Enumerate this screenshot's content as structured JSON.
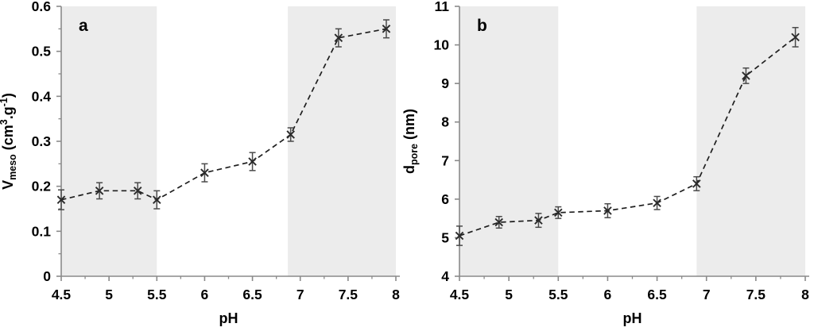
{
  "figure": {
    "description": "Two-panel scatter figure of mesopore volume and pore diameter versus synthesis pH",
    "colors": {
      "background": "#ffffff",
      "shade_band": "#ececec",
      "axis": "#8a8a8a",
      "trend_line": "#1f1f1f",
      "marker": "#2b2b2b",
      "error_bar": "#4a4a4a",
      "label": "#000000"
    }
  },
  "chart_data": [
    {
      "panel_letter": "a",
      "type": "scatter",
      "marker": "x",
      "line_style": "dashed",
      "xlabel": "pH",
      "ylabel": "Vmeso (cm3.g-1)",
      "ylabel_parts": [
        {
          "t": "V"
        },
        {
          "t": "meso",
          "style": "sub"
        },
        {
          "t": " (cm"
        },
        {
          "t": "3",
          "style": "sup"
        },
        {
          "t": ".g"
        },
        {
          "t": "-1",
          "style": "sup"
        },
        {
          "t": ")"
        }
      ],
      "xlim": [
        4.5,
        8
      ],
      "ylim": [
        0,
        0.6
      ],
      "xticks": {
        "values": [
          4.5,
          5,
          5.5,
          6,
          6.5,
          7,
          7.5,
          8
        ],
        "labels": [
          "4.5",
          "5",
          "5.5",
          "6",
          "6.5",
          "7",
          "7.5",
          "8"
        ]
      },
      "yticks": {
        "values": [
          0,
          0.1,
          0.2,
          0.3,
          0.4,
          0.5,
          0.6
        ],
        "labels": [
          "0",
          "0.1",
          "0.2",
          "0.3",
          "0.4",
          "0.5",
          "0.6"
        ]
      },
      "x_minor_step": 0.25,
      "y_minor_step": 0.05,
      "grid": false,
      "shaded_regions": [
        [
          4.5,
          5.5
        ],
        [
          6.87,
          8
        ]
      ],
      "x": [
        4.5,
        4.9,
        5.3,
        5.5,
        6.0,
        6.5,
        6.9,
        7.4,
        7.9
      ],
      "y": [
        0.17,
        0.19,
        0.19,
        0.17,
        0.23,
        0.255,
        0.315,
        0.53,
        0.55
      ],
      "yerr": [
        0.022,
        0.018,
        0.018,
        0.02,
        0.02,
        0.02,
        0.015,
        0.02,
        0.02
      ]
    },
    {
      "panel_letter": "b",
      "type": "scatter",
      "marker": "x",
      "line_style": "dashed",
      "xlabel": "pH",
      "ylabel": "dpore (nm)",
      "ylabel_parts": [
        {
          "t": "d"
        },
        {
          "t": "pore",
          "style": "sub"
        },
        {
          "t": " (nm)"
        }
      ],
      "xlim": [
        4.5,
        8
      ],
      "ylim": [
        4,
        11
      ],
      "xticks": {
        "values": [
          4.5,
          5,
          5.5,
          6,
          6.5,
          7,
          7.5,
          8
        ],
        "labels": [
          "4.5",
          "5",
          "5.5",
          "6",
          "6.5",
          "7",
          "7.5",
          "8"
        ]
      },
      "yticks": {
        "values": [
          4,
          5,
          6,
          7,
          8,
          9,
          10,
          11
        ],
        "labels": [
          "4",
          "5",
          "6",
          "7",
          "8",
          "9",
          "10",
          "11"
        ]
      },
      "x_minor_step": 0.25,
      "y_minor_step": null,
      "grid": false,
      "shaded_regions": [
        [
          4.5,
          5.5
        ],
        [
          6.9,
          8
        ]
      ],
      "x": [
        4.5,
        4.9,
        5.3,
        5.5,
        6.0,
        6.5,
        6.9,
        7.4,
        7.9
      ],
      "y": [
        5.05,
        5.4,
        5.45,
        5.65,
        5.7,
        5.9,
        6.4,
        9.2,
        10.2
      ],
      "yerr": [
        0.25,
        0.15,
        0.18,
        0.15,
        0.18,
        0.17,
        0.18,
        0.2,
        0.25
      ]
    }
  ]
}
